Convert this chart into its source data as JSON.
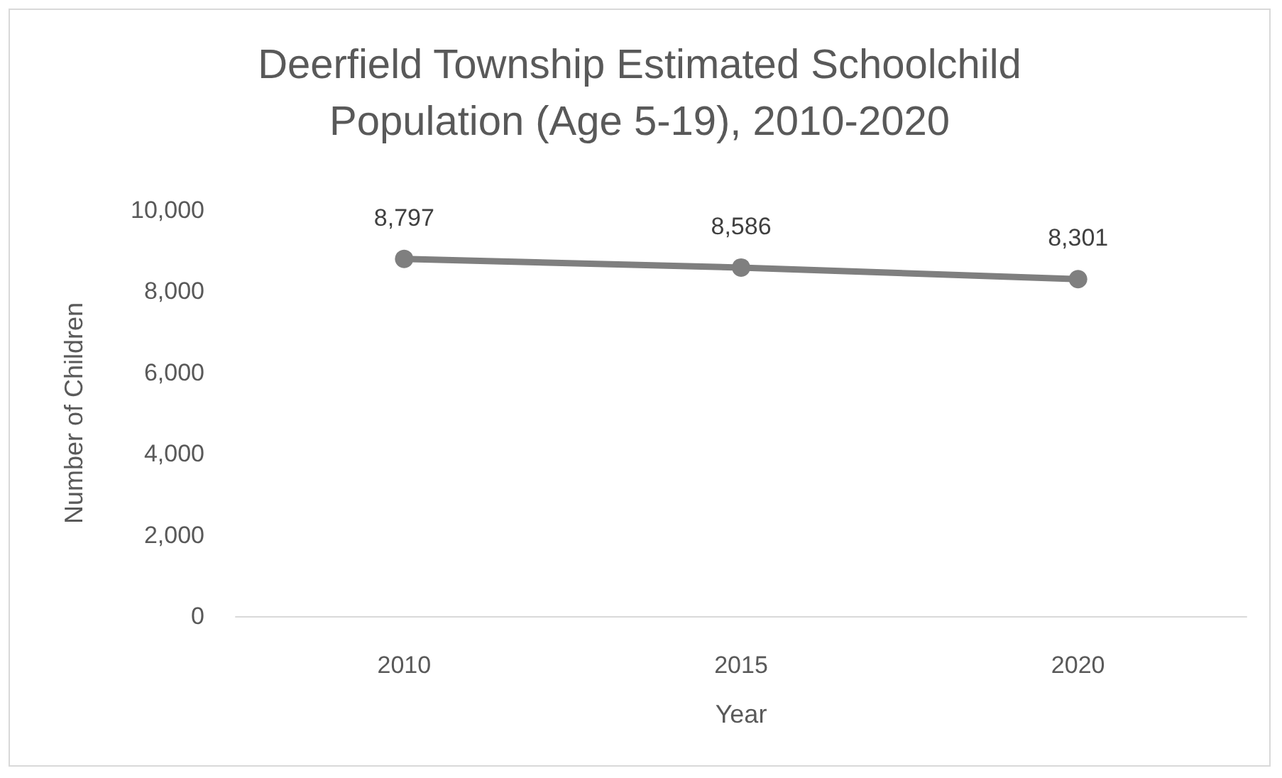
{
  "chart_data": {
    "type": "line",
    "title": "Deerfield Township Estimated Schoolchild\nPopulation (Age 5-19), 2010-2020",
    "xlabel": "Year",
    "ylabel": "Number of Children",
    "categories": [
      "2010",
      "2015",
      "2020"
    ],
    "series": [
      {
        "color": "#7f7f7f",
        "values": [
          8797,
          8586,
          8301
        ],
        "value_labels": [
          "8,797",
          "8,586",
          "8,301"
        ]
      }
    ],
    "ylim": [
      0,
      10000
    ],
    "yticks": [
      {
        "value": 0,
        "label": "0"
      },
      {
        "value": 2000,
        "label": "2,000"
      },
      {
        "value": 4000,
        "label": "4,000"
      },
      {
        "value": 6000,
        "label": "6,000"
      },
      {
        "value": 8000,
        "label": "8,000"
      },
      {
        "value": 10000,
        "label": "10,000"
      }
    ],
    "grid": false,
    "marker": "circle",
    "line_style": "solid"
  }
}
